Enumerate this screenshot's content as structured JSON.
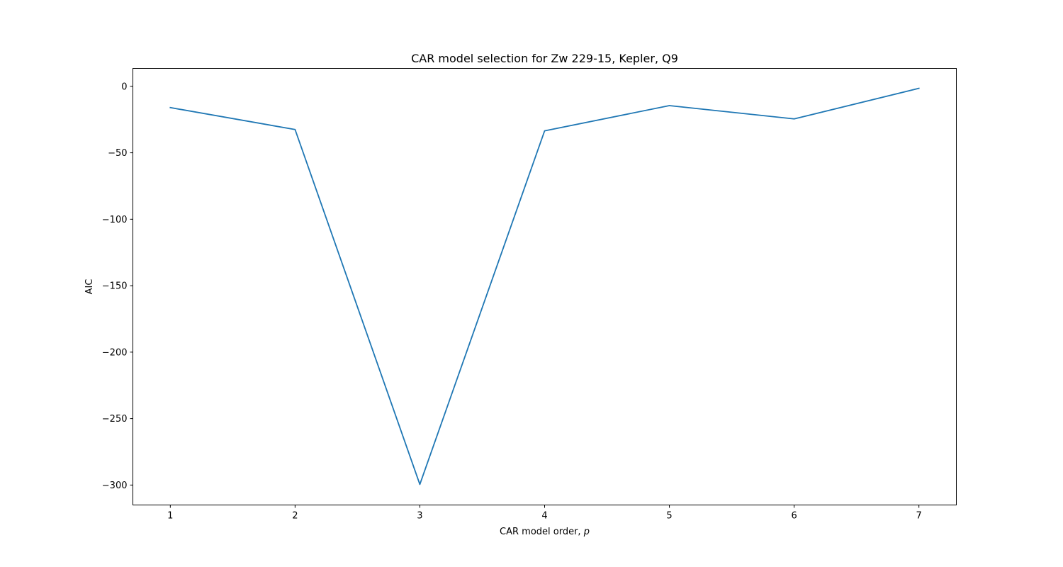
{
  "chart_data": {
    "type": "line",
    "title": "CAR model selection for Zw 229-15, Kepler, Q9",
    "xlabel": "CAR model order, ",
    "xlabel_var": "p",
    "ylabel": "AIC",
    "x": [
      1,
      2,
      3,
      4,
      5,
      6,
      7
    ],
    "series": [
      {
        "values": [
          -16,
          -32.5,
          -299.5,
          -33.5,
          -14.5,
          -24.5,
          -1.5
        ],
        "color": "#1f77b4"
      }
    ],
    "xlim": [
      0.7,
      7.3
    ],
    "ylim": [
      -315,
      13.5
    ],
    "xticks": [
      1,
      2,
      3,
      4,
      5,
      6,
      7
    ],
    "xtick_labels": [
      "1",
      "2",
      "3",
      "4",
      "5",
      "6",
      "7"
    ],
    "yticks": [
      0,
      -50,
      -100,
      -150,
      -200,
      -250,
      -300
    ],
    "ytick_labels": [
      "0",
      "−50",
      "−100",
      "−150",
      "−200",
      "−250",
      "−300"
    ],
    "grid": false,
    "legend": false
  }
}
